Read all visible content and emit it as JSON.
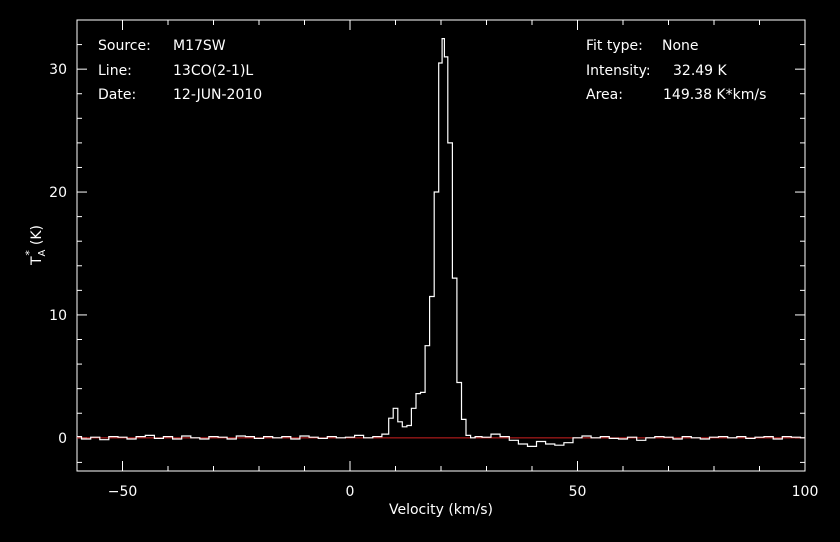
{
  "colors": {
    "background": "#000000",
    "foreground": "#ffffff",
    "baseline": "#d02020"
  },
  "header_left": {
    "source_label": "Source:",
    "source_value": "M17SW",
    "line_label": "Line:",
    "line_value": "13CO(2-1)L",
    "date_label": "Date:",
    "date_value": "12-JUN-2010"
  },
  "header_right": {
    "fit_label": "Fit type:",
    "fit_value": "None",
    "intensity_label": "Intensity:",
    "intensity_value": "32.49 K",
    "area_label": "Area:",
    "area_value": "149.38 K*km/s"
  },
  "chart_data": {
    "type": "line",
    "xlabel": "Velocity (km/s)",
    "ylabel": "T",
    "ylabel_sub": "A",
    "ylabel_sup": "*",
    "ylabel_unit": "(K)",
    "xlim": [
      -60,
      100
    ],
    "ylim": [
      -2.7,
      34
    ],
    "xticks": [
      -50,
      0,
      50,
      100
    ],
    "yticks": [
      0,
      10,
      20,
      30
    ],
    "baseline": 0,
    "series": [
      {
        "x": [
          -60,
          -58,
          -56,
          -54,
          -52,
          -50,
          -48,
          -46,
          -44,
          -42,
          -40,
          -38,
          -36,
          -34,
          -32,
          -30,
          -28,
          -26,
          -24,
          -22,
          -20,
          -18,
          -16,
          -14,
          -12,
          -10,
          -8,
          -6,
          -4,
          -2,
          0,
          2,
          4,
          6,
          8,
          9,
          10,
          11,
          12,
          13,
          14,
          15,
          16,
          17,
          18,
          19,
          20,
          20.5,
          21,
          22,
          23,
          24,
          25,
          26,
          27,
          28,
          30,
          32,
          34,
          36,
          38,
          40,
          42,
          44,
          46,
          48,
          50,
          52,
          54,
          56,
          58,
          60,
          62,
          64,
          66,
          68,
          70,
          72,
          74,
          76,
          78,
          80,
          82,
          84,
          86,
          88,
          90,
          92,
          94,
          96,
          98,
          100
        ],
        "y": [
          0.1,
          -0.1,
          0.05,
          -0.15,
          0.1,
          0.05,
          -0.1,
          0.1,
          0.2,
          -0.05,
          0.1,
          -0.1,
          0.15,
          0.0,
          -0.1,
          0.1,
          0.05,
          -0.1,
          0.15,
          0.1,
          -0.05,
          0.1,
          0.0,
          0.1,
          -0.1,
          0.15,
          0.05,
          -0.05,
          0.1,
          0.0,
          0.05,
          0.2,
          0.0,
          0.1,
          0.3,
          1.6,
          2.4,
          1.3,
          0.9,
          1.0,
          2.4,
          3.6,
          3.7,
          7.5,
          11.5,
          20.0,
          30.5,
          32.49,
          31.0,
          24.0,
          13.0,
          4.5,
          1.5,
          0.2,
          0.0,
          0.1,
          0.05,
          0.3,
          0.1,
          -0.2,
          -0.5,
          -0.7,
          -0.3,
          -0.5,
          -0.6,
          -0.4,
          0.0,
          0.15,
          0.0,
          0.1,
          -0.05,
          -0.1,
          0.05,
          -0.2,
          0.0,
          0.1,
          0.05,
          -0.1,
          0.1,
          0.0,
          -0.1,
          0.05,
          0.1,
          0.0,
          0.1,
          -0.05,
          0.05,
          0.1,
          -0.1,
          0.1,
          0.05,
          0.0
        ]
      }
    ]
  }
}
